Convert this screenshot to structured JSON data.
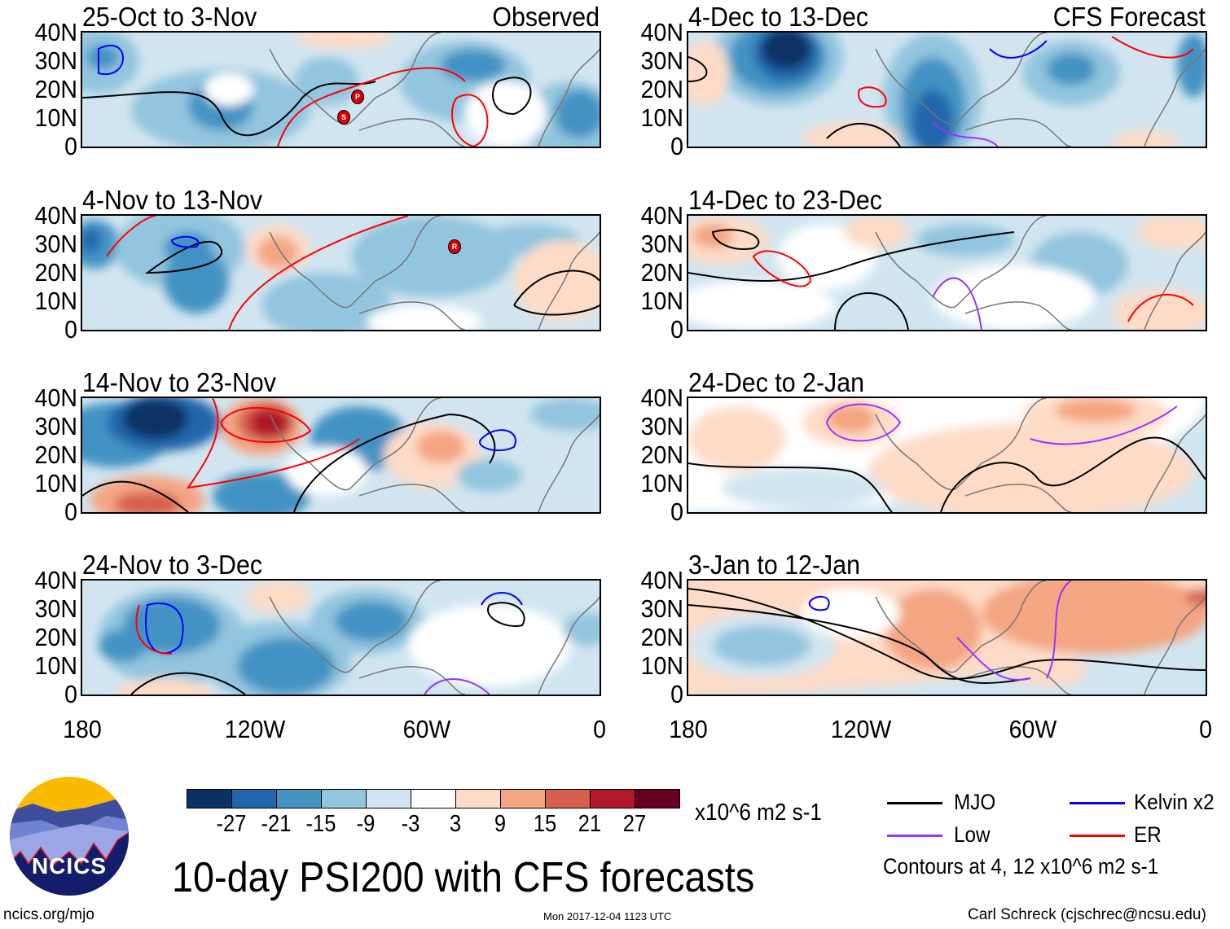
{
  "panels": [
    {
      "title": "25-Oct to 3-Nov",
      "label": "Observed"
    },
    {
      "title": "4-Dec to 13-Dec",
      "label": "CFS Forecast"
    },
    {
      "title": "4-Nov to 13-Nov",
      "label": ""
    },
    {
      "title": "14-Dec to 23-Dec",
      "label": ""
    },
    {
      "title": "14-Nov to 23-Nov",
      "label": ""
    },
    {
      "title": "24-Dec to 2-Jan",
      "label": ""
    },
    {
      "title": "24-Nov to 3-Dec",
      "label": ""
    },
    {
      "title": "3-Jan to 12-Jan",
      "label": ""
    }
  ],
  "storm_markers": [
    {
      "panel": 0,
      "letter": "P"
    },
    {
      "panel": 0,
      "letter": "S"
    },
    {
      "panel": 2,
      "letter": "R"
    }
  ],
  "y_ticks": [
    "40N",
    "30N",
    "20N",
    "10N",
    "0"
  ],
  "x_ticks": [
    "180",
    "120W",
    "60W",
    "0"
  ],
  "colorbar": {
    "colors": [
      "#0b3264",
      "#2166ac",
      "#4393c3",
      "#92c5de",
      "#d1e5f0",
      "#ffffff",
      "#fddbc7",
      "#f4a582",
      "#d6604d",
      "#b2182b",
      "#67001f"
    ],
    "labels": [
      "-27",
      "-21",
      "-15",
      "-9",
      "-3",
      "3",
      "9",
      "15",
      "21",
      "27"
    ],
    "units": "x10^6 m2 s-1"
  },
  "legend": {
    "items": [
      {
        "label": "MJO",
        "color": "#000000"
      },
      {
        "label": "Kelvin x2",
        "color": "#0000ff"
      },
      {
        "label": "Low",
        "color": "#9933ff"
      },
      {
        "label": "ER",
        "color": "#ff0000"
      }
    ],
    "note": "Contours at 4, 12 x10^6 m2 s-1"
  },
  "title": "10-day PSI200 with CFS forecasts",
  "logo_text": "NCICS",
  "footer": {
    "left": "ncics.org/mjo",
    "timestamp": "Mon 2017-12-04 1123 UTC",
    "author": "Carl Schreck (cjschrec@ncsu.edu)"
  }
}
